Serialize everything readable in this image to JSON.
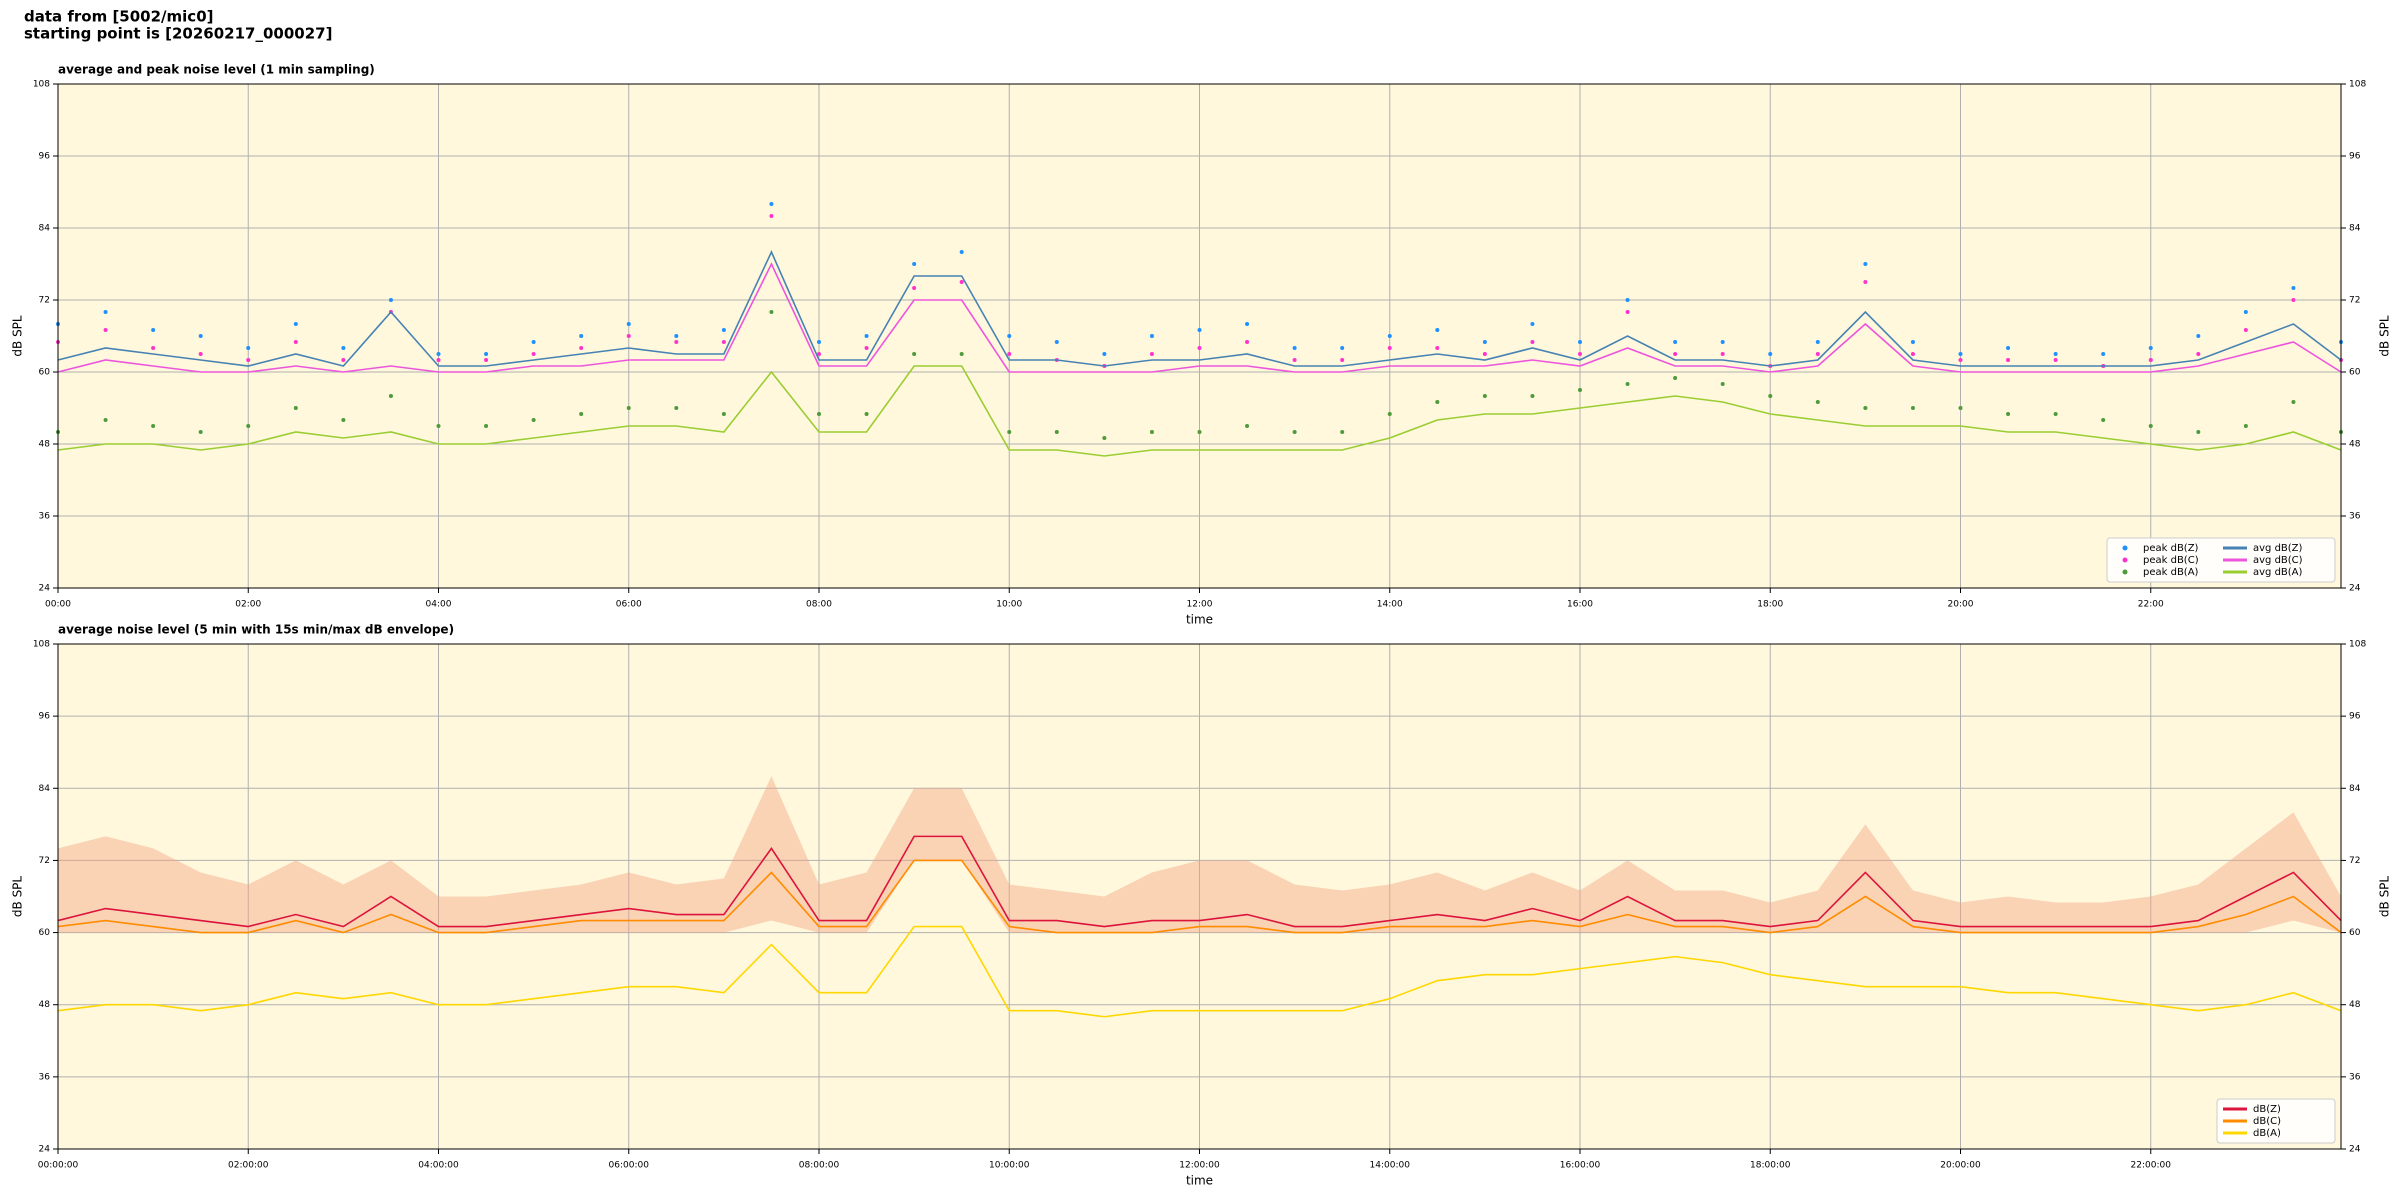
{
  "header": {
    "line1": "data from [5002/mic0]",
    "line2": "starting point is [20260217_000027]"
  },
  "chart_data": [
    {
      "type": "line",
      "title": "average and peak noise level (1 min sampling)",
      "xlabel": "time",
      "ylabel": "dB SPL",
      "grid": true,
      "legend": "lower right",
      "legend_columns": 2,
      "xlim": [
        0,
        24
      ],
      "xticks": [
        {
          "value": 0,
          "label": "00:00"
        },
        {
          "value": 2,
          "label": "02:00"
        },
        {
          "value": 4,
          "label": "04:00"
        },
        {
          "value": 6,
          "label": "06:00"
        },
        {
          "value": 8,
          "label": "08:00"
        },
        {
          "value": 10,
          "label": "10:00"
        },
        {
          "value": 12,
          "label": "12:00"
        },
        {
          "value": 14,
          "label": "14:00"
        },
        {
          "value": 16,
          "label": "16:00"
        },
        {
          "value": 18,
          "label": "18:00"
        },
        {
          "value": 20,
          "label": "20:00"
        },
        {
          "value": 22,
          "label": "22:00"
        }
      ],
      "ylim": [
        24,
        108
      ],
      "yticks": [
        24,
        36,
        48,
        60,
        72,
        84,
        96,
        108
      ],
      "x": [
        0,
        0.5,
        1,
        1.5,
        2,
        2.5,
        3,
        3.5,
        4,
        4.5,
        5,
        5.5,
        6,
        6.5,
        7,
        7.5,
        8,
        8.5,
        9,
        9.5,
        10,
        10.5,
        11,
        11.5,
        12,
        12.5,
        13,
        13.5,
        14,
        14.5,
        15,
        15.5,
        16,
        16.5,
        17,
        17.5,
        18,
        18.5,
        19,
        19.5,
        20,
        20.5,
        21,
        21.5,
        22,
        22.5,
        23,
        23.5,
        24
      ],
      "series": [
        {
          "name": "peak dB(Z)",
          "style": "dots",
          "color": "#1e90ff",
          "values": [
            68,
            70,
            67,
            66,
            64,
            68,
            64,
            72,
            63,
            63,
            65,
            66,
            68,
            66,
            67,
            88,
            65,
            66,
            78,
            80,
            66,
            65,
            63,
            66,
            67,
            68,
            64,
            64,
            66,
            67,
            65,
            68,
            65,
            72,
            65,
            65,
            63,
            65,
            78,
            65,
            63,
            64,
            63,
            63,
            64,
            66,
            70,
            74,
            65
          ]
        },
        {
          "name": "peak dB(C)",
          "style": "dots",
          "color": "#ff33cc",
          "values": [
            65,
            67,
            64,
            63,
            62,
            65,
            62,
            70,
            62,
            62,
            63,
            64,
            66,
            65,
            65,
            86,
            63,
            64,
            74,
            75,
            63,
            62,
            61,
            63,
            64,
            65,
            62,
            62,
            64,
            64,
            63,
            65,
            63,
            70,
            63,
            63,
            61,
            63,
            75,
            63,
            62,
            62,
            62,
            61,
            62,
            63,
            67,
            72,
            62
          ]
        },
        {
          "name": "peak dB(A)",
          "style": "dots",
          "color": "#4f9a3a",
          "values": [
            50,
            52,
            51,
            50,
            51,
            54,
            52,
            56,
            51,
            51,
            52,
            53,
            54,
            54,
            53,
            70,
            53,
            53,
            63,
            63,
            50,
            50,
            49,
            50,
            50,
            51,
            50,
            50,
            53,
            55,
            56,
            56,
            57,
            58,
            59,
            58,
            56,
            55,
            54,
            54,
            54,
            53,
            53,
            52,
            51,
            50,
            51,
            55,
            50
          ]
        },
        {
          "name": "avg dB(Z)",
          "style": "line",
          "color": "#4682b4",
          "values": [
            62,
            64,
            63,
            62,
            61,
            63,
            61,
            70,
            61,
            61,
            62,
            63,
            64,
            63,
            63,
            80,
            62,
            62,
            76,
            76,
            62,
            62,
            61,
            62,
            62,
            63,
            61,
            61,
            62,
            63,
            62,
            64,
            62,
            66,
            62,
            62,
            61,
            62,
            70,
            62,
            61,
            61,
            61,
            61,
            61,
            62,
            65,
            68,
            62
          ]
        },
        {
          "name": "avg dB(C)",
          "style": "line",
          "color": "#ee55dd",
          "values": [
            60,
            62,
            61,
            60,
            60,
            61,
            60,
            61,
            60,
            60,
            61,
            61,
            62,
            62,
            62,
            78,
            61,
            61,
            72,
            72,
            60,
            60,
            60,
            60,
            61,
            61,
            60,
            60,
            61,
            61,
            61,
            62,
            61,
            64,
            61,
            61,
            60,
            61,
            68,
            61,
            60,
            60,
            60,
            60,
            60,
            61,
            63,
            65,
            60
          ]
        },
        {
          "name": "avg dB(A)",
          "style": "line",
          "color": "#9acd32",
          "values": [
            47,
            48,
            48,
            47,
            48,
            50,
            49,
            50,
            48,
            48,
            49,
            50,
            51,
            51,
            50,
            60,
            50,
            50,
            61,
            61,
            47,
            47,
            46,
            47,
            47,
            47,
            47,
            47,
            49,
            52,
            53,
            53,
            54,
            55,
            56,
            55,
            53,
            52,
            51,
            51,
            51,
            50,
            50,
            49,
            48,
            47,
            48,
            50,
            47
          ]
        }
      ]
    },
    {
      "type": "line",
      "title": "average noise level (5 min with 15s min/max dB envelope)",
      "xlabel": "time",
      "ylabel": "dB SPL",
      "grid": true,
      "legend": "lower right",
      "legend_columns": 1,
      "xlim": [
        0,
        24
      ],
      "xticks": [
        {
          "value": 0,
          "label": "00:00:00"
        },
        {
          "value": 2,
          "label": "02:00:00"
        },
        {
          "value": 4,
          "label": "04:00:00"
        },
        {
          "value": 6,
          "label": "06:00:00"
        },
        {
          "value": 8,
          "label": "08:00:00"
        },
        {
          "value": 10,
          "label": "10:00:00"
        },
        {
          "value": 12,
          "label": "12:00:00"
        },
        {
          "value": 14,
          "label": "14:00:00"
        },
        {
          "value": 16,
          "label": "16:00:00"
        },
        {
          "value": 18,
          "label": "18:00:00"
        },
        {
          "value": 20,
          "label": "20:00:00"
        },
        {
          "value": 22,
          "label": "22:00:00"
        }
      ],
      "ylim": [
        24,
        108
      ],
      "yticks": [
        24,
        36,
        48,
        60,
        72,
        84,
        96,
        108
      ],
      "x": [
        0,
        0.5,
        1,
        1.5,
        2,
        2.5,
        3,
        3.5,
        4,
        4.5,
        5,
        5.5,
        6,
        6.5,
        7,
        7.5,
        8,
        8.5,
        9,
        9.5,
        10,
        10.5,
        11,
        11.5,
        12,
        12.5,
        13,
        13.5,
        14,
        14.5,
        15,
        15.5,
        16,
        16.5,
        17,
        17.5,
        18,
        18.5,
        19,
        19.5,
        20,
        20.5,
        21,
        21.5,
        22,
        22.5,
        23,
        23.5,
        24
      ],
      "envelope": {
        "color": "#f4a582",
        "max": [
          74,
          76,
          74,
          70,
          68,
          72,
          68,
          72,
          66,
          66,
          67,
          68,
          70,
          68,
          69,
          86,
          68,
          70,
          84,
          84,
          68,
          67,
          66,
          70,
          72,
          72,
          68,
          67,
          68,
          70,
          67,
          70,
          67,
          72,
          67,
          67,
          65,
          67,
          78,
          67,
          65,
          66,
          65,
          65,
          66,
          68,
          74,
          80,
          66
        ],
        "min": [
          60,
          60,
          60,
          60,
          60,
          60,
          60,
          60,
          60,
          60,
          60,
          60,
          60,
          60,
          60,
          62,
          60,
          60,
          72,
          72,
          60,
          60,
          60,
          60,
          60,
          60,
          60,
          60,
          60,
          60,
          60,
          60,
          60,
          60,
          60,
          60,
          60,
          60,
          60,
          60,
          60,
          60,
          60,
          60,
          60,
          60,
          60,
          62,
          60
        ]
      },
      "series": [
        {
          "name": "dB(Z)",
          "style": "line",
          "color": "#dc143c",
          "values": [
            62,
            64,
            63,
            62,
            61,
            63,
            61,
            66,
            61,
            61,
            62,
            63,
            64,
            63,
            63,
            74,
            62,
            62,
            76,
            76,
            62,
            62,
            61,
            62,
            62,
            63,
            61,
            61,
            62,
            63,
            62,
            64,
            62,
            66,
            62,
            62,
            61,
            62,
            70,
            62,
            61,
            61,
            61,
            61,
            61,
            62,
            66,
            70,
            62
          ]
        },
        {
          "name": "dB(C)",
          "style": "line",
          "color": "#ff8c00",
          "values": [
            61,
            62,
            61,
            60,
            60,
            62,
            60,
            63,
            60,
            60,
            61,
            62,
            62,
            62,
            62,
            70,
            61,
            61,
            72,
            72,
            61,
            60,
            60,
            60,
            61,
            61,
            60,
            60,
            61,
            61,
            61,
            62,
            61,
            63,
            61,
            61,
            60,
            61,
            66,
            61,
            60,
            60,
            60,
            60,
            60,
            61,
            63,
            66,
            60
          ]
        },
        {
          "name": "dB(A)",
          "style": "line",
          "color": "#ffd700",
          "values": [
            47,
            48,
            48,
            47,
            48,
            50,
            49,
            50,
            48,
            48,
            49,
            50,
            51,
            51,
            50,
            58,
            50,
            50,
            61,
            61,
            47,
            47,
            46,
            47,
            47,
            47,
            47,
            47,
            49,
            52,
            53,
            53,
            54,
            55,
            56,
            55,
            53,
            52,
            51,
            51,
            51,
            50,
            50,
            49,
            48,
            47,
            48,
            50,
            47
          ]
        }
      ]
    }
  ]
}
